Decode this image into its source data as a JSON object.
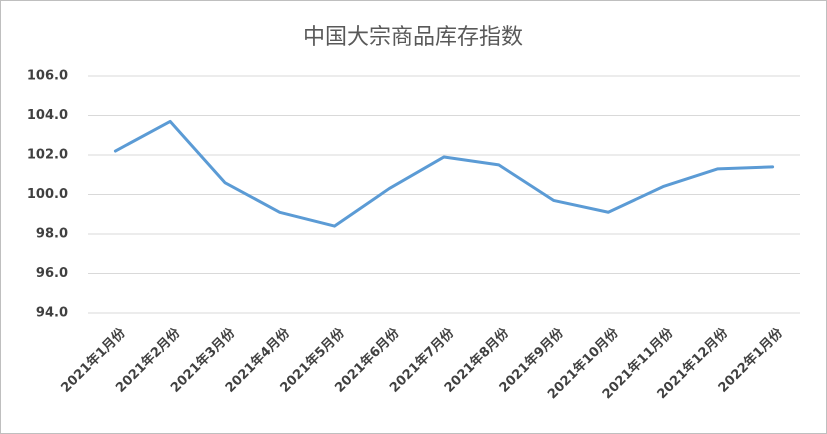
{
  "chart_data": {
    "type": "line",
    "title": "中国大宗商品库存指数",
    "categories": [
      "2021年1月份",
      "2021年2月份",
      "2021年3月份",
      "2021年4月份",
      "2021年5月份",
      "2021年6月份",
      "2021年7月份",
      "2021年8月份",
      "2021年9月份",
      "2021年10月份",
      "2021年11月份",
      "2021年12月份",
      "2022年1月份"
    ],
    "values": [
      102.2,
      103.7,
      100.6,
      99.1,
      98.4,
      100.3,
      101.9,
      101.5,
      99.7,
      99.1,
      100.4,
      101.3,
      101.4
    ],
    "color": "#5b9bd5",
    "ylim": [
      94,
      106
    ],
    "yticks": [
      {
        "value": 94,
        "label": "94.0"
      },
      {
        "value": 96,
        "label": "96.0"
      },
      {
        "value": 98,
        "label": "98.0"
      },
      {
        "value": 100,
        "label": "100.0"
      },
      {
        "value": 102,
        "label": "102.0"
      },
      {
        "value": 104,
        "label": "104.0"
      },
      {
        "value": 106,
        "label": "106.0"
      }
    ],
    "grid": true
  }
}
